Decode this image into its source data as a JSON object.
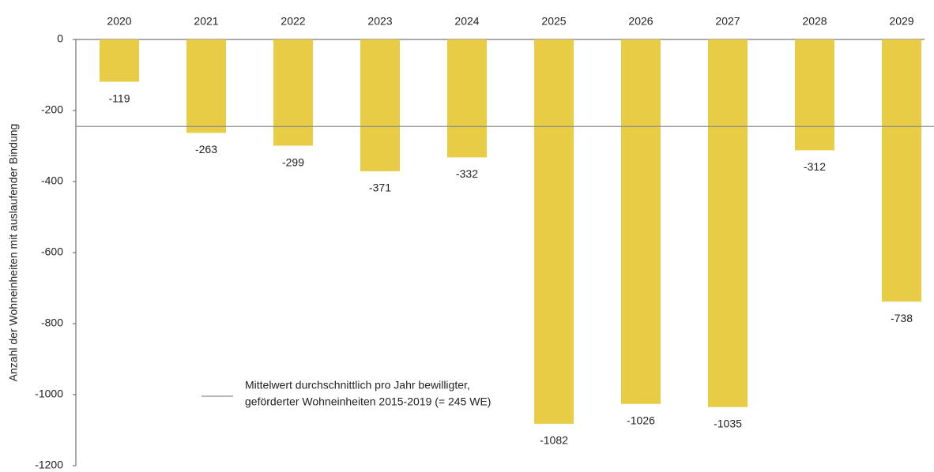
{
  "chart_data": {
    "type": "bar",
    "y_label": "Anzahl der Wohneinheiten mit auslaufender Bindung",
    "categories": [
      "2020",
      "2021",
      "2022",
      "2023",
      "2024",
      "2025",
      "2026",
      "2027",
      "2028",
      "2029"
    ],
    "values": [
      -119,
      -263,
      -299,
      -371,
      -332,
      -1082,
      -1026,
      -1035,
      -312,
      -738
    ],
    "color": "#e8cc45",
    "ylim": [
      -1200,
      0
    ],
    "yticks": [
      0,
      -200,
      -400,
      -600,
      -800,
      -1000,
      -1200
    ],
    "reference_line": {
      "value": -245,
      "color": "#8c8c8c",
      "label": [
        "Mittelwert durchschnittlich pro Jahr bewilligter,",
        "geförderter Wohneinheiten 2015-2019 (= 245 WE)"
      ]
    }
  }
}
